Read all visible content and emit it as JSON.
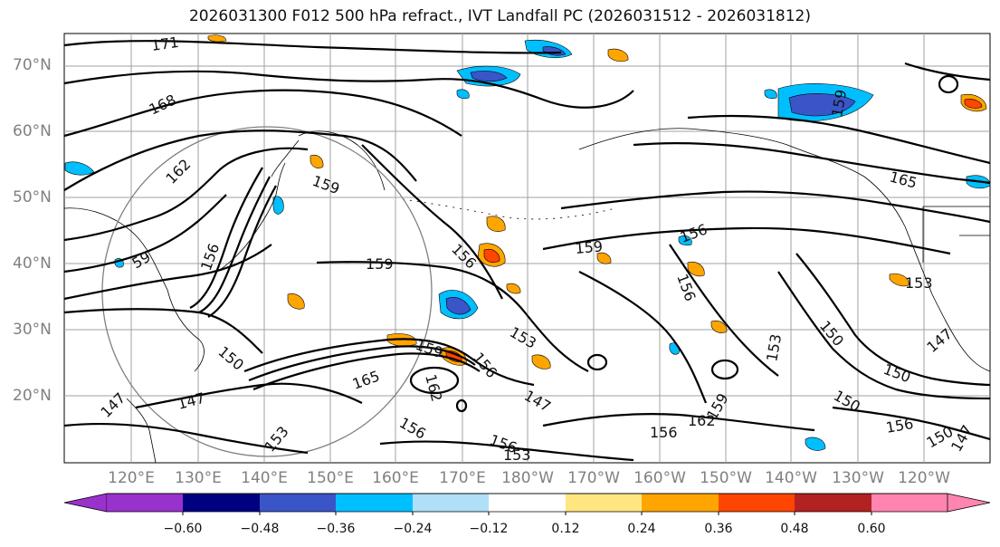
{
  "title": "2026031300 F012 500 hPa refract., IVT Landfall PC (2026031512 - 2026031812)",
  "lat_labels": [
    "70°N",
    "60°N",
    "50°N",
    "40°N",
    "30°N",
    "20°N"
  ],
  "lon_labels": [
    "120°E",
    "130°E",
    "140°E",
    "150°E",
    "160°E",
    "170°E",
    "180°W",
    "170°W",
    "160°W",
    "150°W",
    "140°W",
    "130°W",
    "120°W"
  ],
  "contour_labels": [
    "171",
    "168",
    "162",
    "159",
    "159",
    "59",
    "156",
    "159",
    "156",
    "156",
    "159",
    "156",
    "153",
    "153",
    "150",
    "150",
    "147",
    "153",
    "150",
    "147",
    "165",
    "162",
    "159",
    "159",
    "162",
    "156",
    "165",
    "147",
    "153",
    "156",
    "150",
    "147",
    "156",
    "156",
    "153",
    "150",
    "156",
    "147"
  ],
  "colorbar": {
    "ticks": [
      "−0.60",
      "−0.48",
      "−0.36",
      "−0.24",
      "−0.12",
      "0.12",
      "0.24",
      "0.36",
      "0.48",
      "0.60"
    ],
    "colors": [
      "#9932cc",
      "#000080",
      "#3a55c8",
      "#00bfff",
      "#b0e0f8",
      "#ffffff",
      "#ffe680",
      "#ffa500",
      "#ff4500",
      "#b22222",
      "#ff85b0",
      "#ff85b0"
    ],
    "under_color": "#9932cc",
    "over_color": "#ff85b0"
  },
  "accent_colors": {
    "contour": "#000000",
    "gridline": "#a0a0a0",
    "coastline": "#000000",
    "circle": "#808080"
  }
}
